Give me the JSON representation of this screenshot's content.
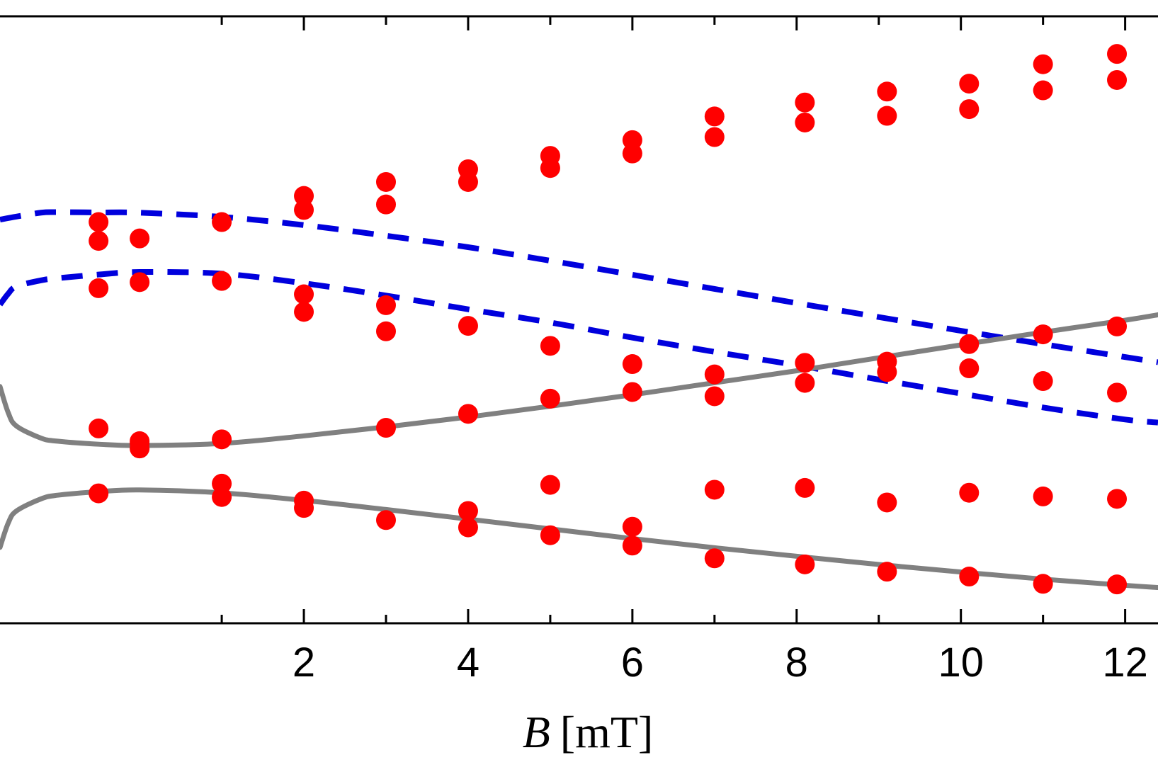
{
  "chart_data": {
    "type": "scatter",
    "title": "",
    "xlabel_var": "B",
    "xlabel_unit": "[mT]",
    "ylabel": "",
    "xlim": [
      -1.7,
      12.4
    ],
    "ylim": [
      0,
      1
    ],
    "x_major_ticks": [
      2,
      4,
      6,
      8,
      10,
      12
    ],
    "x_minor_ticks": [
      1,
      3,
      5,
      7,
      9,
      11
    ],
    "tick_labels": [
      "2",
      "4",
      "6",
      "8",
      "10",
      "12"
    ],
    "colors": {
      "points": "#ff0000",
      "dashed": "#0000dd",
      "solid": "#808080"
    },
    "curves": [
      {
        "name": "dashed-upper",
        "style": "dashed",
        "x": [
          -1.7,
          -1.5,
          -1.2,
          -1.0,
          -0.5,
          0,
          1,
          2,
          3,
          4,
          5,
          6,
          7,
          8,
          9,
          10,
          11,
          12,
          12.4
        ],
        "y": [
          0.665,
          0.67,
          0.6765,
          0.6773,
          0.6768,
          0.6764,
          0.6695,
          0.656,
          0.6385,
          0.6196,
          0.5973,
          0.5742,
          0.5508,
          0.5275,
          0.5045,
          0.4819,
          0.4599,
          0.4386,
          0.4301
        ]
      },
      {
        "name": "dashed-lower",
        "style": "dashed",
        "x": [
          -1.7,
          -1.6,
          -1.5,
          -1.2,
          -1.0,
          -0.5,
          0,
          1,
          2,
          3,
          4,
          5,
          6,
          7,
          8,
          9,
          10,
          11,
          12,
          12.4
        ],
        "y": [
          0.525,
          0.543,
          0.555,
          0.565,
          0.5685,
          0.5745,
          0.5787,
          0.576,
          0.5602,
          0.5399,
          0.5173,
          0.4956,
          0.4706,
          0.4472,
          0.4251,
          0.4015,
          0.3785,
          0.3555,
          0.3357,
          0.3307
        ]
      },
      {
        "name": "solid-upper",
        "style": "solid",
        "x": [
          -1.7,
          -1.6,
          -1.5,
          -1.2,
          -1.0,
          -0.5,
          0,
          1,
          2,
          3,
          4,
          5,
          6,
          7,
          8,
          9,
          10,
          11,
          12,
          12.4
        ],
        "y": [
          0.39,
          0.347,
          0.325,
          0.305,
          0.3,
          0.295,
          0.2928,
          0.2963,
          0.3087,
          0.3235,
          0.3398,
          0.3576,
          0.3764,
          0.3963,
          0.416,
          0.4374,
          0.4586,
          0.4795,
          0.4993,
          0.5082
        ]
      },
      {
        "name": "solid-lower",
        "style": "solid",
        "x": [
          -1.7,
          -1.6,
          -1.5,
          -1.2,
          -1.0,
          -0.5,
          0,
          1,
          2,
          3,
          4,
          5,
          6,
          7,
          8,
          9,
          10,
          11,
          12,
          12.4
        ],
        "y": [
          0.125,
          0.165,
          0.185,
          0.205,
          0.211,
          0.2168,
          0.2197,
          0.2148,
          0.2024,
          0.1874,
          0.1716,
          0.1555,
          0.1395,
          0.1244,
          0.1104,
          0.0968,
          0.0844,
          0.0727,
          0.0625,
          0.0589
        ]
      }
    ],
    "points": {
      "x": [
        -0.5,
        -0.5,
        -0.5,
        -0.5,
        -0.5,
        0,
        0,
        0,
        0,
        0,
        1,
        1,
        1,
        1,
        1,
        2,
        2,
        2,
        2,
        2,
        2,
        3,
        3,
        3,
        3,
        3,
        3,
        4,
        4,
        4,
        4,
        4,
        4,
        5,
        5,
        5,
        5,
        5,
        5,
        6,
        6,
        6,
        6,
        6,
        6,
        7,
        7,
        7,
        7,
        7,
        7,
        8.1,
        8.1,
        8.1,
        8.1,
        8.1,
        8.1,
        9.1,
        9.1,
        9.1,
        9.1,
        9.1,
        9.1,
        10.1,
        10.1,
        10.1,
        10.1,
        10.1,
        10.1,
        11,
        11,
        11,
        11,
        11,
        11,
        11.9,
        11.9,
        11.9,
        11.9,
        11.9,
        11.9
      ],
      "y": [
        0.661,
        0.63,
        0.552,
        0.321,
        0.214,
        0.634,
        0.562,
        0.3,
        0.296,
        0.288,
        0.661,
        0.564,
        0.303,
        0.23,
        0.208,
        0.681,
        0.704,
        0.542,
        0.513,
        0.19,
        0.202,
        0.727,
        0.69,
        0.524,
        0.481,
        0.322,
        0.17,
        0.748,
        0.727,
        0.49,
        0.345,
        0.158,
        0.185,
        0.77,
        0.75,
        0.457,
        0.37,
        0.145,
        0.228,
        0.796,
        0.774,
        0.427,
        0.381,
        0.128,
        0.159,
        0.801,
        0.835,
        0.374,
        0.41,
        0.107,
        0.22,
        0.825,
        0.858,
        0.396,
        0.429,
        0.097,
        0.223,
        0.836,
        0.876,
        0.431,
        0.414,
        0.085,
        0.199,
        0.847,
        0.889,
        0.46,
        0.42,
        0.077,
        0.215,
        0.878,
        0.921,
        0.476,
        0.399,
        0.065,
        0.209,
        0.895,
        0.938,
        0.489,
        0.38,
        0.064,
        0.205
      ]
    }
  }
}
